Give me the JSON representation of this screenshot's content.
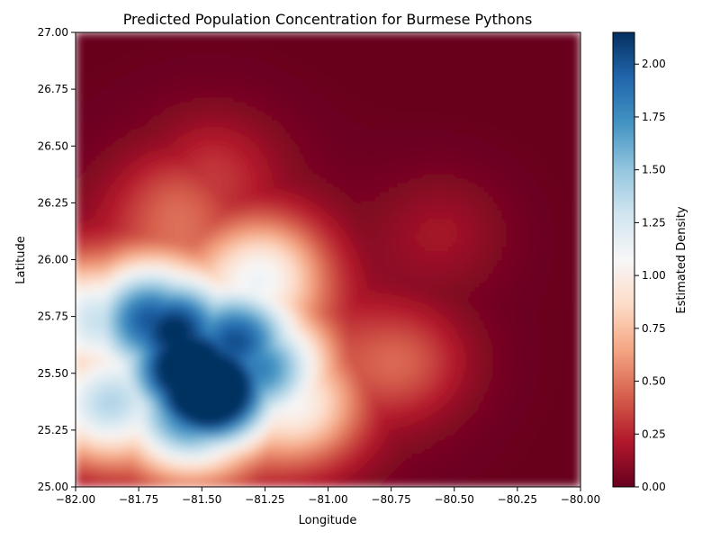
{
  "chart_data": {
    "type": "heatmap",
    "title": "Predicted Population Concentration for Burmese Pythons",
    "xlabel": "Longitude",
    "ylabel": "Latitude",
    "xlim": [
      -82.0,
      -80.0
    ],
    "ylim": [
      25.0,
      27.0
    ],
    "x_ticks": [
      "−82.00",
      "−81.75",
      "−81.50",
      "−81.25",
      "−81.00",
      "−80.75",
      "−80.50",
      "−80.25",
      "−80.00"
    ],
    "x_tick_values": [
      -82.0,
      -81.75,
      -81.5,
      -81.25,
      -81.0,
      -80.75,
      -80.5,
      -80.25,
      -80.0
    ],
    "y_ticks": [
      "25.00",
      "25.25",
      "25.50",
      "25.75",
      "26.00",
      "26.25",
      "26.50",
      "26.75",
      "27.00"
    ],
    "y_tick_values": [
      25.0,
      25.25,
      25.5,
      25.75,
      26.0,
      26.25,
      26.5,
      26.75,
      27.0
    ],
    "colormap": "RdBu",
    "colorbar": {
      "label": "Estimated Density",
      "range": [
        0.0,
        2.15
      ],
      "ticks": [
        "0.00",
        "0.25",
        "0.50",
        "0.75",
        "1.00",
        "1.25",
        "1.50",
        "1.75",
        "2.00"
      ],
      "tick_values": [
        0.0,
        0.25,
        0.5,
        0.75,
        1.0,
        1.25,
        1.5,
        1.75,
        2.0
      ]
    },
    "grid": false,
    "density_peak": {
      "longitude": -81.47,
      "latitude": 25.42,
      "value": 2.15
    },
    "density_hotspots": [
      {
        "longitude": -81.47,
        "latitude": 25.42,
        "value": 2.1
      },
      {
        "longitude": -81.55,
        "latitude": 25.52,
        "value": 1.75
      },
      {
        "longitude": -81.62,
        "latitude": 25.7,
        "value": 1.45
      },
      {
        "longitude": -81.72,
        "latitude": 25.75,
        "value": 1.35
      },
      {
        "longitude": -81.35,
        "latitude": 25.65,
        "value": 1.3
      },
      {
        "longitude": -81.25,
        "latitude": 25.52,
        "value": 1.15
      },
      {
        "longitude": -81.55,
        "latitude": 25.3,
        "value": 1.2
      },
      {
        "longitude": -81.9,
        "latitude": 25.35,
        "value": 0.95
      },
      {
        "longitude": -81.95,
        "latitude": 25.75,
        "value": 0.9
      },
      {
        "longitude": -81.25,
        "latitude": 25.95,
        "value": 0.75
      },
      {
        "longitude": -81.1,
        "latitude": 25.35,
        "value": 0.65
      },
      {
        "longitude": -80.7,
        "latitude": 25.55,
        "value": 0.35
      },
      {
        "longitude": -81.6,
        "latitude": 26.25,
        "value": 0.3
      },
      {
        "longitude": -81.45,
        "latitude": 26.4,
        "value": 0.22
      },
      {
        "longitude": -80.55,
        "latitude": 26.12,
        "value": 0.15
      }
    ]
  },
  "colors": {
    "cmap_stops": [
      "#67001f",
      "#b2182b",
      "#d6604d",
      "#f4a582",
      "#fddbc7",
      "#f7f7f7",
      "#d1e5f0",
      "#92c5de",
      "#4393c3",
      "#2166ac",
      "#053061"
    ]
  }
}
